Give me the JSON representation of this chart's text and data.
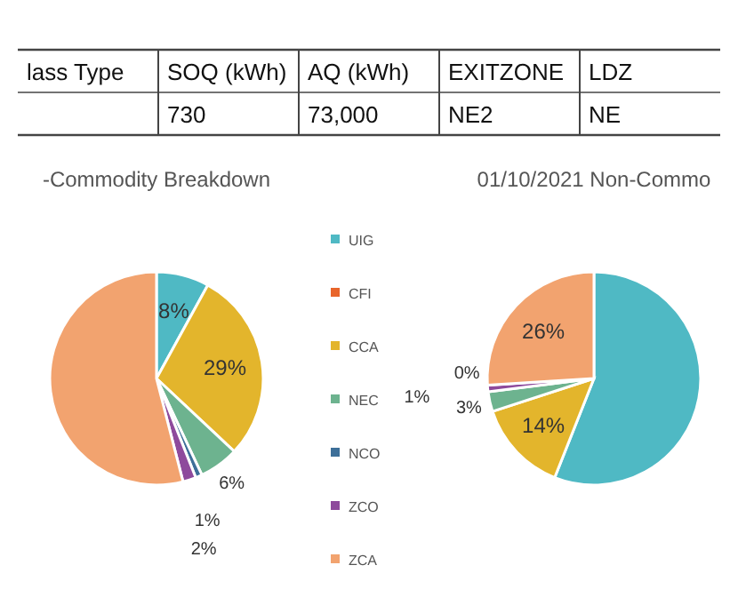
{
  "chart_data": [
    {
      "type": "other",
      "annotations": [
        "lass Type",
        "SOQ (kWh)",
        "AQ (kWh)",
        "EXITZONE",
        "LDZ",
        "730",
        "73,000",
        "NE2",
        "NE"
      ]
    },
    {
      "type": "pie",
      "title": "-Commodity Breakdown",
      "categories": [
        "UIG",
        "CFI",
        "CCA",
        "NEC",
        "NCO",
        "ZCO",
        "ZCA"
      ],
      "values": [
        8,
        0,
        29,
        6,
        1,
        2,
        54
      ],
      "colors": [
        "#4fb9c4",
        "#e8652b",
        "#e3b52c",
        "#6db38f",
        "#3d6f99",
        "#8e4a9c",
        "#f2a36f"
      ],
      "value_labels": [
        "8%",
        null,
        "29%",
        "6%",
        "1%",
        "2%",
        null
      ],
      "legend": "right"
    },
    {
      "type": "pie",
      "title": "01/10/2021 Non-Commo",
      "categories": [
        null,
        null,
        null,
        null,
        null,
        null,
        null
      ],
      "values": [
        56,
        0,
        14,
        3,
        0,
        1,
        26
      ],
      "colors": [
        "#4fb9c4",
        "#e8652b",
        "#e3b52c",
        "#6db38f",
        "#3d6f99",
        "#8e4a9c",
        "#f2a36f"
      ],
      "value_labels": [
        null,
        null,
        "14%",
        "3%",
        "0%",
        "1%",
        "26%"
      ],
      "legend": false
    }
  ]
}
